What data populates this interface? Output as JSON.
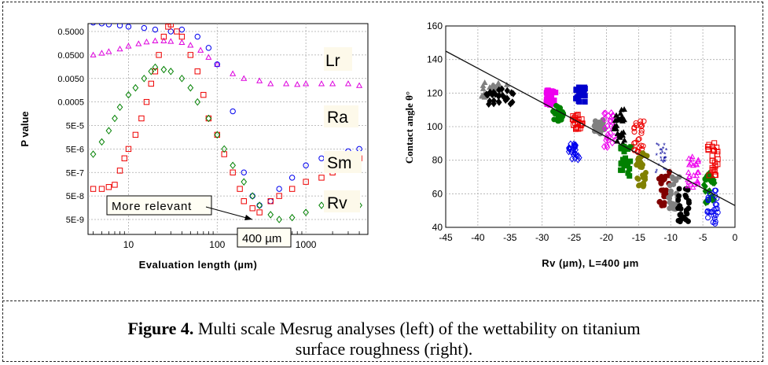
{
  "chart_data": [
    {
      "type": "scatter",
      "title": "",
      "xlabel": "Evaluation length (µm)",
      "ylabel": "P value",
      "x_scale": "log",
      "y_scale": "log",
      "xlim": [
        3.5,
        5000
      ],
      "ylim": [
        1e-09,
        1
      ],
      "x_ticks": [
        "10",
        "100",
        "1000"
      ],
      "y_ticks": [
        "0.5000",
        "0.0500",
        "0.0050",
        "0.0005",
        "5E-5",
        "5E-6",
        "5E-7",
        "5E-8",
        "5E-9"
      ],
      "grid": true,
      "series": [
        {
          "name": "Lr",
          "color": "#dd00dd",
          "marker": "triangle",
          "x": [
            4,
            5,
            6,
            8,
            10,
            13,
            16,
            20,
            25,
            30,
            40,
            50,
            65,
            80,
            100,
            150,
            200,
            300,
            400,
            600,
            800,
            1000,
            1500,
            2000,
            3000,
            4000
          ],
          "y": [
            0.05,
            0.06,
            0.07,
            0.09,
            0.12,
            0.15,
            0.18,
            0.2,
            0.2,
            0.19,
            0.17,
            0.13,
            0.08,
            0.04,
            0.02,
            0.008,
            0.005,
            0.004,
            0.003,
            0.003,
            0.0028,
            0.003,
            0.003,
            0.003,
            0.003,
            0.0025
          ]
        },
        {
          "name": "Ra",
          "color": "#0000ee",
          "marker": "circle",
          "x": [
            4,
            5,
            6,
            8,
            10,
            15,
            20,
            30,
            40,
            60,
            80,
            100,
            150,
            200,
            250,
            300,
            400,
            500,
            700,
            1000,
            1500,
            2000,
            3000,
            4000
          ],
          "y": [
            1.2,
            1.1,
            1.0,
            0.9,
            0.8,
            0.7,
            0.6,
            0.5,
            0.6,
            0.3,
            0.1,
            0.02,
            0.0002,
            5e-07,
            5e-08,
            2e-08,
            3e-08,
            1e-07,
            3e-07,
            1e-06,
            2e-06,
            3e-06,
            4e-06,
            5e-06
          ]
        },
        {
          "name": "Sm",
          "color": "#ee0000",
          "marker": "square",
          "x": [
            4,
            5,
            6,
            7,
            8,
            9,
            10,
            12,
            14,
            16,
            18,
            20,
            22,
            25,
            28,
            30,
            35,
            40,
            50,
            60,
            70,
            80,
            100,
            120,
            150,
            180,
            200,
            250,
            300,
            400,
            500,
            700,
            1000,
            1500,
            2000,
            3000,
            4000
          ],
          "y": [
            1e-07,
            1e-07,
            1.2e-07,
            1.5e-07,
            6e-07,
            2e-06,
            5e-06,
            2e-05,
            0.0001,
            0.0005,
            0.003,
            0.01,
            0.05,
            0.3,
            0.8,
            1.0,
            0.5,
            0.3,
            0.05,
            0.01,
            0.001,
            0.0001,
            2e-05,
            3e-06,
            5e-07,
            1e-07,
            3e-08,
            1.5e-08,
            1e-08,
            3e-08,
            5e-08,
            1e-07,
            2e-07,
            3e-07,
            5e-07,
            1e-06,
            2e-06
          ]
        },
        {
          "name": "Rv",
          "color": "#008000",
          "marker": "diamond",
          "x": [
            4,
            5,
            6,
            7,
            8,
            10,
            12,
            15,
            18,
            20,
            25,
            30,
            40,
            50,
            60,
            80,
            100,
            120,
            150,
            200,
            250,
            300,
            400,
            500,
            700,
            1000,
            1500,
            2000,
            3000,
            4000
          ],
          "y": [
            3e-06,
            1e-05,
            3e-05,
            0.0001,
            0.0003,
            0.001,
            0.002,
            0.005,
            0.01,
            0.015,
            0.012,
            0.01,
            0.005,
            0.002,
            0.0005,
            0.0001,
            2e-05,
            5e-06,
            1e-06,
            2e-07,
            5e-08,
            2e-08,
            8e-09,
            5e-09,
            6e-09,
            1e-08,
            2e-08,
            2e-08,
            3e-08,
            2e-08
          ]
        }
      ],
      "annotations": [
        {
          "text": "More relevant",
          "x": 40,
          "y": 8e-09
        },
        {
          "text": "400 µm",
          "x": 300,
          "y": 1e-09
        }
      ]
    },
    {
      "type": "scatter",
      "title": "",
      "xlabel": "Rv (µm), L=400 µm",
      "ylabel": "Contact angle θ°",
      "xlim": [
        -45,
        0
      ],
      "ylim": [
        40,
        160
      ],
      "x_ticks": [
        "-45",
        "-40",
        "-35",
        "-30",
        "-25",
        "-20",
        "-15",
        "-10",
        "-5",
        "0"
      ],
      "y_ticks": [
        "40",
        "60",
        "80",
        "100",
        "120",
        "140",
        "160"
      ],
      "grid": true,
      "clusters": [
        {
          "x": -37.5,
          "y": 122,
          "color": "#808080",
          "marker": "triangle"
        },
        {
          "x": -36.5,
          "y": 118,
          "color": "#000000",
          "marker": "diamond"
        },
        {
          "x": -28.5,
          "y": 117,
          "color": "#ee00ee",
          "marker": "square"
        },
        {
          "x": -27.5,
          "y": 108,
          "color": "#008000",
          "marker": "circle"
        },
        {
          "x": -24,
          "y": 119,
          "color": "#0000cc",
          "marker": "square"
        },
        {
          "x": -24.5,
          "y": 103,
          "color": "#ee0000",
          "marker": "square"
        },
        {
          "x": -25,
          "y": 85,
          "color": "#0000ee",
          "marker": "diamond"
        },
        {
          "x": -21,
          "y": 100,
          "color": "#808080",
          "marker": "circle"
        },
        {
          "x": -19.5,
          "y": 98,
          "color": "#ee00ee",
          "marker": "diamond"
        },
        {
          "x": -18,
          "y": 100,
          "color": "#000000",
          "marker": "triangle"
        },
        {
          "x": -17,
          "y": 80,
          "color": "#008000",
          "marker": "square"
        },
        {
          "x": -15,
          "y": 93,
          "color": "#ee0000",
          "marker": "circle"
        },
        {
          "x": -14.5,
          "y": 74,
          "color": "#808000",
          "marker": "circle"
        },
        {
          "x": -11.5,
          "y": 79,
          "color": "#000099",
          "marker": "star"
        },
        {
          "x": -11,
          "y": 63,
          "color": "#800000",
          "marker": "circle"
        },
        {
          "x": -9.5,
          "y": 60,
          "color": "#808080",
          "marker": "circle"
        },
        {
          "x": -8,
          "y": 53,
          "color": "#000000",
          "marker": "circle"
        },
        {
          "x": -6.5,
          "y": 72,
          "color": "#ee00ee",
          "marker": "triangle"
        },
        {
          "x": -4,
          "y": 62,
          "color": "#008000",
          "marker": "diamond"
        },
        {
          "x": -3.5,
          "y": 80,
          "color": "#ee0000",
          "marker": "square"
        },
        {
          "x": -3.5,
          "y": 52,
          "color": "#0000ee",
          "marker": "circle"
        }
      ],
      "fit_line": {
        "x": [
          -45,
          0
        ],
        "y": [
          145,
          53
        ],
        "color": "#111111"
      }
    }
  ],
  "left_labels": [
    "Lr",
    "Ra",
    "Sm",
    "Rv"
  ],
  "annotation_more_relevant": "More relevant",
  "annotation_400": "400 µm",
  "caption": {
    "label": "Figure 4.",
    "text_line1": " Multi scale Mesrug analyses (left) of the wettability on titanium",
    "text_line2": "surface roughness (right)."
  }
}
